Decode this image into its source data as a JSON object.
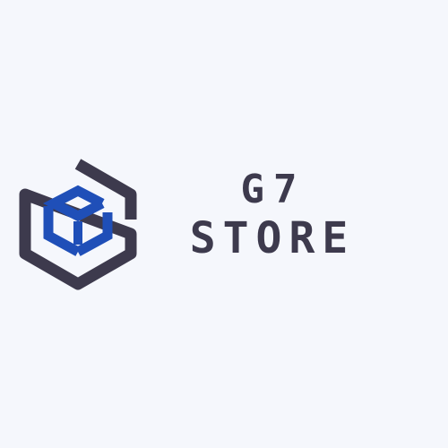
{
  "brand": {
    "name_line1": "G7",
    "name_line2": "STORE",
    "colors": {
      "background": "#f5f7fc",
      "hexagon": "#3d3a4d",
      "box": "#1f4fb8",
      "text": "#3d3a4d"
    },
    "icon": "hexagon-box-logo-icon"
  }
}
